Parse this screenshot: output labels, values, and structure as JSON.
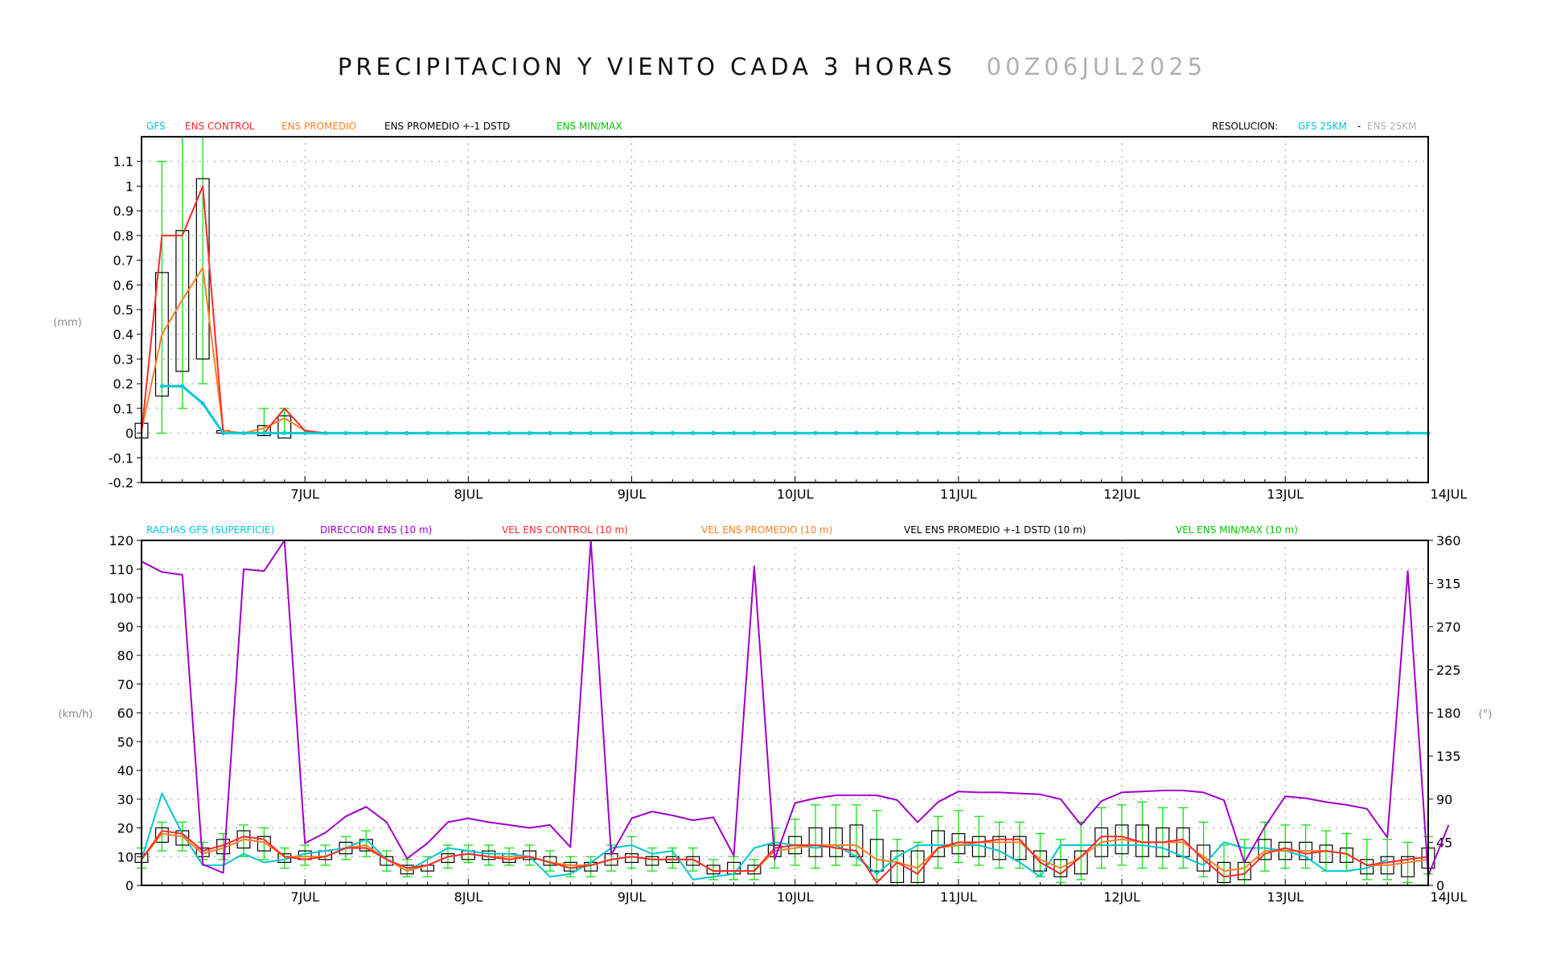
{
  "title": {
    "main": "PRECIPITACION Y VIENTO CADA 3 HORAS",
    "date": "00Z06JUL2025"
  },
  "colors": {
    "gfs": "#00c8d2",
    "control": "#ff2a2a",
    "promedio": "#ff7f1e",
    "box": "#000000",
    "minmax": "#00e000",
    "direccion": "#a000c8",
    "grid": "#999999",
    "ens_res": "#b0b0b0"
  },
  "top_legend": {
    "gfs": "GFS",
    "control": "ENS CONTROL",
    "promedio": "ENS PROMEDIO",
    "std": "ENS PROMEDIO +-1 DSTD",
    "minmax": "ENS MIN/MAX",
    "res_label": "RESOLUCION:",
    "res_gfs": "GFS 25KM",
    "res_ens": "ENS 25KM"
  },
  "bottom_legend": {
    "rachas": "RACHAS GFS (SUPERFICIE)",
    "direccion": "DIRECCION ENS (10 m)",
    "control": "VEL ENS CONTROL (10 m)",
    "promedio": "VEL ENS PROMEDIO (10 m)",
    "std": "VEL ENS PROMEDIO +-1 DSTD (10 m)",
    "minmax": "VEL ENS MIN/MAX (10 m)"
  },
  "chart_data": [
    {
      "type": "line",
      "panel": "precipitation",
      "ylabel": "(mm)",
      "ylim": [
        -0.2,
        1.2
      ],
      "yticks": [
        "-0.2",
        "-0.1",
        "0",
        "0.1",
        "0.2",
        "0.3",
        "0.4",
        "0.5",
        "0.6",
        "0.7",
        "0.8",
        "0.9",
        "1",
        "1.1"
      ],
      "x_tick_labels": [
        "7JUL",
        "8JUL",
        "9JUL",
        "10JUL",
        "11JUL",
        "12JUL",
        "13JUL",
        "14JUL"
      ],
      "x_unit": "3-hour steps from 00Z06JUL2025",
      "grid": true,
      "series": {
        "gfs": [
          [
            1,
            0.19
          ],
          [
            2,
            0.19
          ],
          [
            3,
            0.12
          ],
          [
            4,
            0
          ],
          [
            5,
            0
          ],
          [
            6,
            0
          ],
          [
            7,
            0
          ],
          [
            8,
            0
          ],
          [
            9,
            0
          ]
        ],
        "control": [
          [
            0,
            0
          ],
          [
            1,
            0.8
          ],
          [
            2,
            0.8
          ],
          [
            3,
            1.0
          ],
          [
            4,
            0
          ],
          [
            5,
            0
          ],
          [
            6,
            0
          ],
          [
            7,
            0.1
          ],
          [
            8,
            0.01
          ],
          [
            9,
            0
          ]
        ],
        "promedio": [
          [
            0,
            0.01
          ],
          [
            1,
            0.4
          ],
          [
            2,
            0.54
          ],
          [
            3,
            0.67
          ],
          [
            4,
            0.01
          ],
          [
            5,
            0
          ],
          [
            6,
            0.02
          ],
          [
            7,
            0.06
          ],
          [
            8,
            0.01
          ],
          [
            9,
            0
          ]
        ],
        "boxes": [
          [
            0,
            -0.02,
            0.04
          ],
          [
            1,
            0.15,
            0.65
          ],
          [
            2,
            0.25,
            0.82
          ],
          [
            3,
            0.3,
            1.03
          ],
          [
            4,
            0,
            0.01
          ],
          [
            6,
            -0.01,
            0.03
          ],
          [
            7,
            -0.02,
            0.07
          ]
        ],
        "minmax": [
          [
            1,
            0,
            1.1
          ],
          [
            2,
            0.1,
            1.2
          ],
          [
            3,
            0.2,
            1.2
          ],
          [
            6,
            0,
            0.1
          ],
          [
            7,
            0,
            0.1
          ]
        ]
      }
    },
    {
      "type": "line",
      "panel": "wind",
      "ylabel": "(km/h)",
      "y2label": "(°)",
      "ylim": [
        0,
        120
      ],
      "y2lim": [
        0,
        360
      ],
      "yticks": [
        "0",
        "10",
        "20",
        "30",
        "40",
        "50",
        "60",
        "70",
        "80",
        "90",
        "100",
        "110",
        "120"
      ],
      "y2ticks": [
        "0",
        "45",
        "90",
        "135",
        "180",
        "225",
        "270",
        "315",
        "360"
      ],
      "x_tick_labels": [
        "7JUL",
        "8JUL",
        "9JUL",
        "10JUL",
        "11JUL",
        "12JUL",
        "13JUL",
        "14JUL"
      ],
      "x_unit": "3-hour steps from 00Z06JUL2025",
      "grid": true,
      "series": {
        "rachas": [
          9,
          32,
          18,
          7,
          7,
          11,
          8,
          9,
          11,
          12,
          13,
          16,
          9,
          5,
          9,
          13,
          12,
          11,
          11,
          10,
          3,
          4,
          8,
          13,
          14,
          11,
          12,
          2,
          3,
          4,
          13,
          15,
          14,
          13,
          14,
          10,
          4,
          10,
          14,
          14,
          14,
          14,
          12,
          8,
          3,
          14,
          14,
          14,
          14,
          14,
          13,
          10,
          7,
          15,
          13,
          13,
          12,
          10,
          5,
          5,
          6,
          9
        ],
        "direccion": [
          338,
          327,
          324,
          22,
          13,
          330,
          328,
          360,
          44,
          55,
          72,
          82,
          66,
          28,
          44,
          66,
          70,
          66,
          63,
          60,
          63,
          40,
          360,
          32,
          70,
          77,
          73,
          68,
          71,
          31,
          333,
          27,
          86,
          91,
          94,
          94,
          94,
          89,
          66,
          87,
          98,
          97,
          97,
          96,
          95,
          90,
          63,
          88,
          97,
          98,
          99,
          99,
          97,
          89,
          24,
          61,
          93,
          91,
          87,
          84,
          80,
          50,
          328,
          10,
          63
        ],
        "control": [
          9,
          19,
          18,
          12,
          14,
          17,
          16,
          10,
          9,
          10,
          13,
          13,
          9,
          6,
          7,
          10,
          11,
          10,
          9,
          10,
          8,
          6,
          7,
          9,
          10,
          9,
          9,
          9,
          5,
          5,
          5,
          13,
          14,
          14,
          13,
          12,
          1,
          8,
          4,
          13,
          15,
          15,
          16,
          16,
          8,
          4,
          10,
          17,
          17,
          15,
          15,
          16,
          9,
          3,
          4,
          11,
          13,
          11,
          12,
          11,
          7,
          8,
          9,
          10
        ],
        "promedio": [
          9,
          18,
          17,
          11,
          13,
          16,
          15,
          10,
          10,
          10,
          13,
          14,
          9,
          5,
          7,
          10,
          11,
          10,
          10,
          10,
          8,
          7,
          7,
          9,
          10,
          9,
          9,
          9,
          5,
          5,
          5,
          12,
          13,
          14,
          14,
          14,
          9,
          8,
          6,
          13,
          14,
          15,
          15,
          15,
          9,
          6,
          10,
          15,
          16,
          15,
          15,
          15,
          10,
          5,
          6,
          12,
          12,
          12,
          12,
          11,
          7,
          7,
          8,
          9
        ],
        "boxes": [
          [
            0,
            8,
            11
          ],
          [
            1,
            15,
            20
          ],
          [
            2,
            14,
            19
          ],
          [
            3,
            10,
            13
          ],
          [
            4,
            11,
            16
          ],
          [
            5,
            13,
            19
          ],
          [
            6,
            12,
            17
          ],
          [
            7,
            8,
            11
          ],
          [
            8,
            9,
            12
          ],
          [
            9,
            9,
            12
          ],
          [
            10,
            11,
            15
          ],
          [
            11,
            12,
            16
          ],
          [
            12,
            7,
            10
          ],
          [
            13,
            4,
            7
          ],
          [
            14,
            5,
            7
          ],
          [
            15,
            8,
            11
          ],
          [
            16,
            9,
            12
          ],
          [
            17,
            9,
            12
          ],
          [
            18,
            8,
            11
          ],
          [
            19,
            9,
            12
          ],
          [
            20,
            7,
            10
          ],
          [
            21,
            5,
            8
          ],
          [
            22,
            5,
            8
          ],
          [
            23,
            7,
            11
          ],
          [
            24,
            8,
            11
          ],
          [
            25,
            7,
            10
          ],
          [
            26,
            8,
            10
          ],
          [
            27,
            7,
            10
          ],
          [
            28,
            4,
            7
          ],
          [
            29,
            4,
            8
          ],
          [
            30,
            4,
            7
          ],
          [
            31,
            10,
            14
          ],
          [
            32,
            11,
            17
          ],
          [
            33,
            10,
            20
          ],
          [
            34,
            10,
            20
          ],
          [
            35,
            10,
            21
          ],
          [
            36,
            5,
            16
          ],
          [
            37,
            1,
            12
          ],
          [
            38,
            1,
            12
          ],
          [
            39,
            10,
            19
          ],
          [
            40,
            11,
            18
          ],
          [
            41,
            10,
            17
          ],
          [
            42,
            9,
            17
          ],
          [
            43,
            9,
            17
          ],
          [
            44,
            5,
            12
          ],
          [
            45,
            3,
            9
          ],
          [
            46,
            4,
            12
          ],
          [
            47,
            10,
            20
          ],
          [
            48,
            11,
            21
          ],
          [
            49,
            10,
            21
          ],
          [
            50,
            10,
            20
          ],
          [
            51,
            10,
            20
          ],
          [
            52,
            5,
            14
          ],
          [
            53,
            1,
            8
          ],
          [
            54,
            2,
            8
          ],
          [
            55,
            9,
            16
          ],
          [
            56,
            9,
            15
          ],
          [
            57,
            9,
            15
          ],
          [
            58,
            8,
            14
          ],
          [
            59,
            8,
            13
          ],
          [
            60,
            4,
            9
          ],
          [
            61,
            4,
            10
          ],
          [
            62,
            3,
            10
          ],
          [
            63,
            6,
            13
          ]
        ],
        "minmax": [
          [
            0,
            6,
            13
          ],
          [
            1,
            12,
            22
          ],
          [
            2,
            12,
            22
          ],
          [
            3,
            9,
            15
          ],
          [
            4,
            9,
            18
          ],
          [
            5,
            10,
            21
          ],
          [
            6,
            9,
            20
          ],
          [
            7,
            6,
            13
          ],
          [
            8,
            7,
            14
          ],
          [
            9,
            7,
            14
          ],
          [
            10,
            9,
            17
          ],
          [
            11,
            10,
            19
          ],
          [
            12,
            5,
            12
          ],
          [
            13,
            3,
            9
          ],
          [
            14,
            3,
            10
          ],
          [
            15,
            6,
            14
          ],
          [
            16,
            8,
            14
          ],
          [
            17,
            7,
            14
          ],
          [
            18,
            7,
            13
          ],
          [
            19,
            7,
            14
          ],
          [
            20,
            5,
            12
          ],
          [
            21,
            3,
            10
          ],
          [
            22,
            3,
            10
          ],
          [
            23,
            5,
            14
          ],
          [
            24,
            6,
            17
          ],
          [
            25,
            5,
            13
          ],
          [
            26,
            6,
            13
          ],
          [
            27,
            5,
            13
          ],
          [
            28,
            2,
            9
          ],
          [
            29,
            2,
            10
          ],
          [
            30,
            2,
            9
          ],
          [
            31,
            6,
            20
          ],
          [
            32,
            7,
            23
          ],
          [
            33,
            6,
            28
          ],
          [
            34,
            7,
            28
          ],
          [
            35,
            7,
            28
          ],
          [
            36,
            2,
            26
          ],
          [
            37,
            0,
            16
          ],
          [
            38,
            0,
            15
          ],
          [
            39,
            6,
            24
          ],
          [
            40,
            8,
            26
          ],
          [
            41,
            7,
            24
          ],
          [
            42,
            6,
            22
          ],
          [
            43,
            6,
            22
          ],
          [
            44,
            3,
            18
          ],
          [
            45,
            1,
            16
          ],
          [
            46,
            2,
            22
          ],
          [
            47,
            6,
            27
          ],
          [
            48,
            7,
            28
          ],
          [
            49,
            6,
            29
          ],
          [
            50,
            6,
            27
          ],
          [
            51,
            6,
            27
          ],
          [
            52,
            3,
            22
          ],
          [
            53,
            0,
            14
          ],
          [
            54,
            0,
            16
          ],
          [
            55,
            5,
            22
          ],
          [
            56,
            6,
            21
          ],
          [
            57,
            6,
            21
          ],
          [
            58,
            5,
            19
          ],
          [
            59,
            5,
            18
          ],
          [
            60,
            2,
            16
          ],
          [
            61,
            2,
            16
          ],
          [
            62,
            1,
            15
          ],
          [
            63,
            4,
            17
          ]
        ]
      }
    }
  ]
}
